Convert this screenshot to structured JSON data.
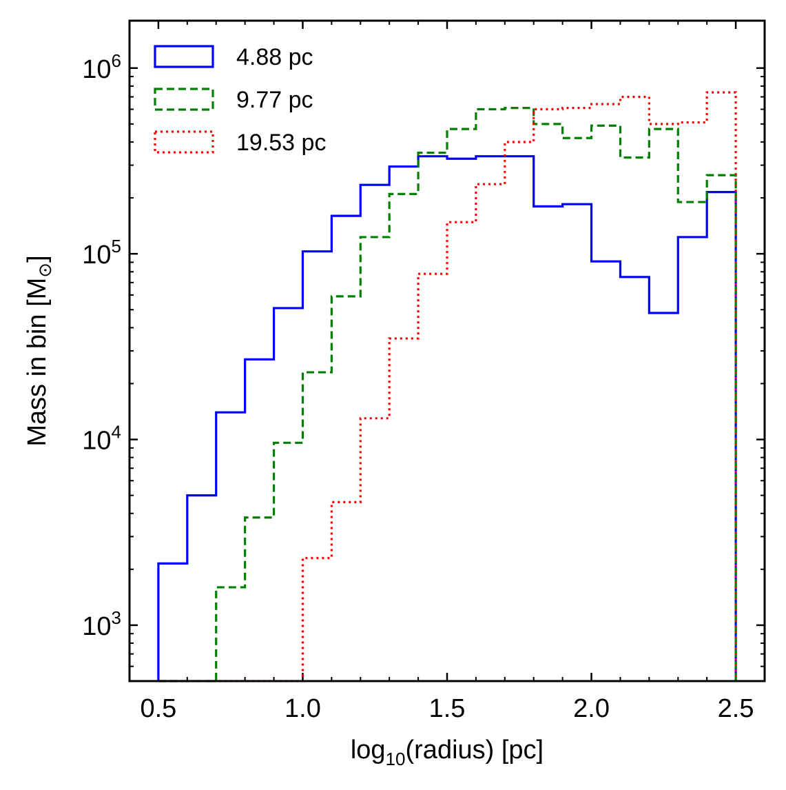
{
  "chart_data": {
    "type": "histogram-step",
    "xlabel": {
      "prefix": "log",
      "sub": "10",
      "suffix": "(radius) [pc]"
    },
    "ylabel": {
      "main": "Mass in bin [M",
      "sub": "⊙",
      "close": "]"
    },
    "yscale": "log",
    "xlim": [
      0.4,
      2.6
    ],
    "ylim": [
      500,
      1800000
    ],
    "x_ticks": [
      0.5,
      1.0,
      1.5,
      2.0,
      2.5
    ],
    "x_tick_labels": [
      "0.5",
      "1.0",
      "1.5",
      "2.0",
      "2.5"
    ],
    "y_ticks": [
      {
        "value": 1000,
        "base": "10",
        "exp": "3"
      },
      {
        "value": 10000,
        "base": "10",
        "exp": "4"
      },
      {
        "value": 100000,
        "base": "10",
        "exp": "5"
      },
      {
        "value": 1000000,
        "base": "10",
        "exp": "6"
      }
    ],
    "bin_edges": [
      0.5,
      0.6,
      0.7,
      0.8,
      0.9,
      1.0,
      1.1,
      1.2,
      1.3,
      1.4,
      1.5,
      1.6,
      1.7,
      1.8,
      1.9,
      2.0,
      2.1,
      2.2,
      2.3,
      2.4,
      2.5
    ],
    "legend_position": "upper-left",
    "series": [
      {
        "name": "4.88 pc",
        "color": "#0000ff",
        "style": "solid",
        "values": [
          2150,
          5000,
          14000,
          27000,
          51000,
          103000,
          160000,
          235000,
          295000,
          335000,
          325000,
          335000,
          335000,
          180000,
          185000,
          91000,
          75000,
          48000,
          123000,
          215000
        ]
      },
      {
        "name": "9.77 pc",
        "color": "#008000",
        "style": "dashed",
        "values": [
          0,
          0,
          1600,
          3800,
          9600,
          23000,
          59000,
          123000,
          210000,
          350000,
          470000,
          600000,
          610000,
          500000,
          420000,
          490000,
          330000,
          470000,
          190000,
          265000
        ]
      },
      {
        "name": "19.53 pc",
        "color": "#ff0000",
        "style": "dotted",
        "values": [
          0,
          0,
          0,
          0,
          0,
          2300,
          4600,
          13000,
          35000,
          78000,
          148000,
          237000,
          400000,
          600000,
          610000,
          640000,
          700000,
          500000,
          510000,
          740000
        ]
      }
    ]
  }
}
